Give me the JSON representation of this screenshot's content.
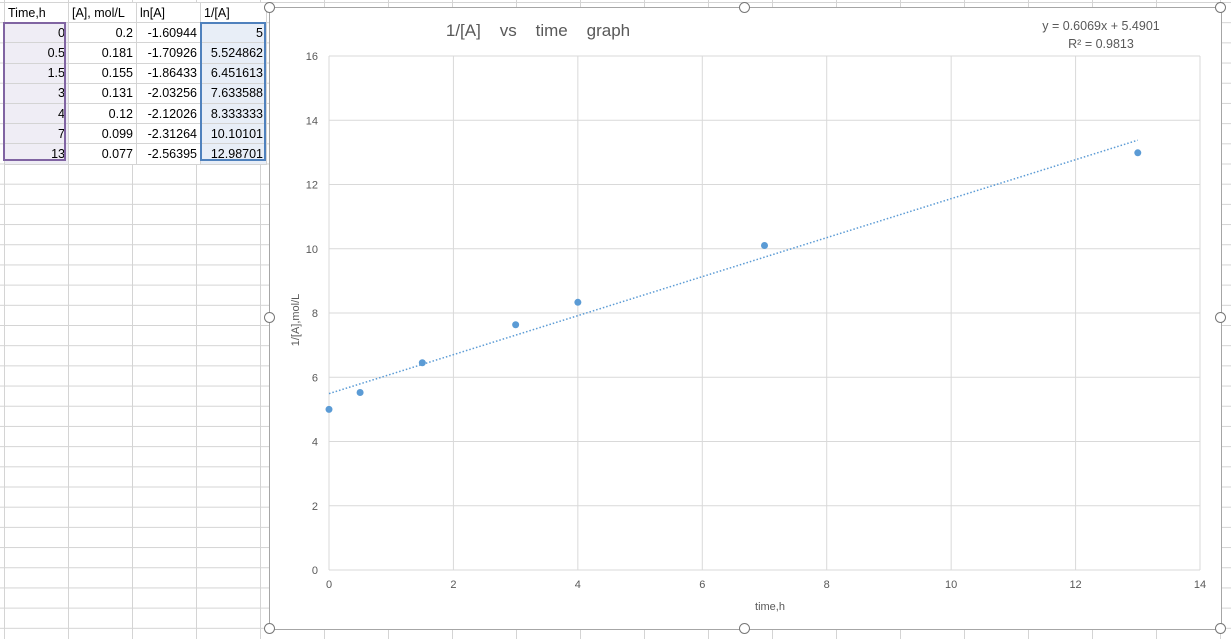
{
  "sheet": {
    "headers": [
      "Time,h",
      "[A], mol/L",
      "ln[A]",
      "1/[A]"
    ],
    "rows": [
      [
        "0",
        "0.2",
        "-1.60944",
        "5"
      ],
      [
        "0.5",
        "0.181",
        "-1.70926",
        "5.524862"
      ],
      [
        "1.5",
        "0.155",
        "-1.86433",
        "6.451613"
      ],
      [
        "3",
        "0.131",
        "-2.03256",
        "7.633588"
      ],
      [
        "4",
        "0.12",
        "-2.12026",
        "8.333333"
      ],
      [
        "7",
        "0.099",
        "-2.31264",
        "10.10101"
      ],
      [
        "13",
        "0.077",
        "-2.56395",
        "12.98701"
      ]
    ]
  },
  "chart_data": {
    "type": "scatter",
    "title": "1/[A]    vs    time    graph",
    "xlabel": "time,h",
    "ylabel": "1/[A],mol/L",
    "xlim": [
      0,
      14
    ],
    "ylim": [
      0,
      16
    ],
    "xticks": [
      "0",
      "2",
      "4",
      "6",
      "8",
      "10",
      "12",
      "14"
    ],
    "yticks": [
      "0",
      "2",
      "4",
      "6",
      "8",
      "10",
      "12",
      "14",
      "16"
    ],
    "grid": true,
    "x": [
      0,
      0.5,
      1.5,
      3,
      4,
      7,
      13
    ],
    "y": [
      5,
      5.524862,
      6.451613,
      7.633588,
      8.333333,
      10.10101,
      12.98701
    ],
    "trendline": {
      "type": "linear",
      "slope": 0.6069,
      "intercept": 5.4901,
      "x_range": [
        0,
        13
      ]
    },
    "equation_label": "y = 0.6069x + 5.4901",
    "r2_label": "R² = 0.9813",
    "colors": {
      "points": "#5b9bd5",
      "trendline": "#5b9bd5",
      "gridlines": "#d9d9d9"
    }
  }
}
